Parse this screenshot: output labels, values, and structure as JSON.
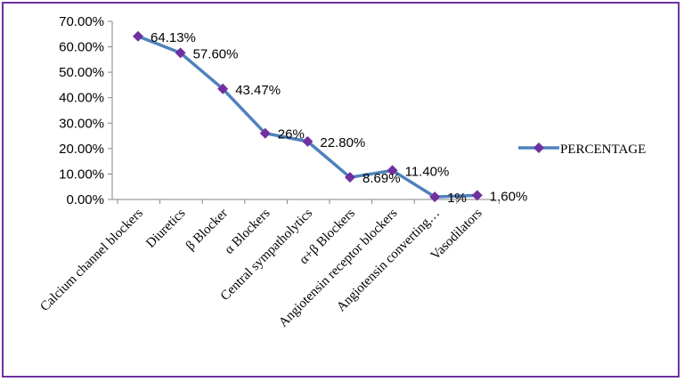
{
  "chart_data": {
    "type": "line",
    "title": "",
    "xlabel": "",
    "ylabel": "",
    "ylim": [
      0,
      70
    ],
    "y_tick_step": 10,
    "y_tick_labels": [
      "0.00%",
      "10.00%",
      "20.00%",
      "30.00%",
      "40.00%",
      "50.00%",
      "60.00%",
      "70.00%"
    ],
    "grid": false,
    "legend_position": "right",
    "categories": [
      "Calcium channel blockers",
      "Diuretics",
      "β Blocker",
      "α Blockers",
      "Central sympatholytics",
      "α+β Blockers",
      "Angiotensin receptor blockers",
      "Angiotensin converting…",
      "Vasodilators"
    ],
    "series": [
      {
        "name": "PERCENTAGE",
        "values": [
          64.13,
          57.6,
          43.47,
          26,
          22.8,
          8.69,
          11.4,
          1,
          1.6
        ],
        "data_labels": [
          "64.13%",
          "57.60%",
          "43.47%",
          "26%",
          "22.80%",
          "8.69%",
          "11.40%",
          "1%",
          "1.60%"
        ],
        "line_color": "#4f81bd",
        "marker_color": "#7030a0",
        "marker": "diamond"
      }
    ],
    "border_color": "#7030a0"
  }
}
